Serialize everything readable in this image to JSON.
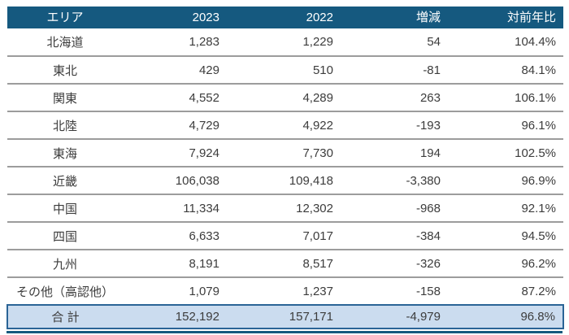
{
  "colors": {
    "header_bg": "#15597F",
    "header_text": "#FFFFFF",
    "text": "#3C3C3C",
    "row_rule": "#9C9C9C",
    "total_bg": "#CBDCEF",
    "total_border": "#2A6496",
    "bottom_rule": "#175A7E"
  },
  "table": {
    "columns": [
      {
        "label": "エリア"
      },
      {
        "label": "2023"
      },
      {
        "label": "2022"
      },
      {
        "label": "増減"
      },
      {
        "label": "対前年比"
      }
    ],
    "rows": [
      {
        "area": "北海道",
        "y2023": "1,283",
        "y2022": "1,229",
        "diff": "54",
        "yoy": "104.4%"
      },
      {
        "area": "東北",
        "y2023": "429",
        "y2022": "510",
        "diff": "-81",
        "yoy": "84.1%"
      },
      {
        "area": "関東",
        "y2023": "4,552",
        "y2022": "4,289",
        "diff": "263",
        "yoy": "106.1%"
      },
      {
        "area": "北陸",
        "y2023": "4,729",
        "y2022": "4,922",
        "diff": "-193",
        "yoy": "96.1%"
      },
      {
        "area": "東海",
        "y2023": "7,924",
        "y2022": "7,730",
        "diff": "194",
        "yoy": "102.5%"
      },
      {
        "area": "近畿",
        "y2023": "106,038",
        "y2022": "109,418",
        "diff": "-3,380",
        "yoy": "96.9%"
      },
      {
        "area": "中国",
        "y2023": "11,334",
        "y2022": "12,302",
        "diff": "-968",
        "yoy": "92.1%"
      },
      {
        "area": "四国",
        "y2023": "6,633",
        "y2022": "7,017",
        "diff": "-384",
        "yoy": "94.5%"
      },
      {
        "area": "九州",
        "y2023": "8,191",
        "y2022": "8,517",
        "diff": "-326",
        "yoy": "96.2%"
      },
      {
        "area": "その他（高認他）",
        "y2023": "1,079",
        "y2022": "1,237",
        "diff": "-158",
        "yoy": "87.2%"
      }
    ],
    "total": {
      "area": "合 計",
      "y2023": "152,192",
      "y2022": "157,171",
      "diff": "-4,979",
      "yoy": "96.8%"
    }
  },
  "chart_data": {
    "type": "table",
    "columns": [
      "エリア",
      "2023",
      "2022",
      "増減",
      "対前年比"
    ],
    "rows": [
      [
        "北海道",
        1283,
        1229,
        54,
        "104.4%"
      ],
      [
        "東北",
        429,
        510,
        -81,
        "84.1%"
      ],
      [
        "関東",
        4552,
        4289,
        263,
        "106.1%"
      ],
      [
        "北陸",
        4729,
        4922,
        -193,
        "96.1%"
      ],
      [
        "東海",
        7924,
        7730,
        194,
        "102.5%"
      ],
      [
        "近畿",
        106038,
        109418,
        -3380,
        "96.9%"
      ],
      [
        "中国",
        11334,
        12302,
        -968,
        "92.1%"
      ],
      [
        "四国",
        6633,
        7017,
        -384,
        "94.5%"
      ],
      [
        "九州",
        8191,
        8517,
        -326,
        "96.2%"
      ],
      [
        "その他（高認他）",
        1079,
        1237,
        -158,
        "87.2%"
      ]
    ],
    "total_row": [
      "合 計",
      152192,
      157171,
      -4979,
      "96.8%"
    ],
    "layout_hints": {
      "header_style": "dark-blue-fill",
      "total_style": "light-blue-boxed",
      "grid": "horizontal-rules-only"
    }
  }
}
